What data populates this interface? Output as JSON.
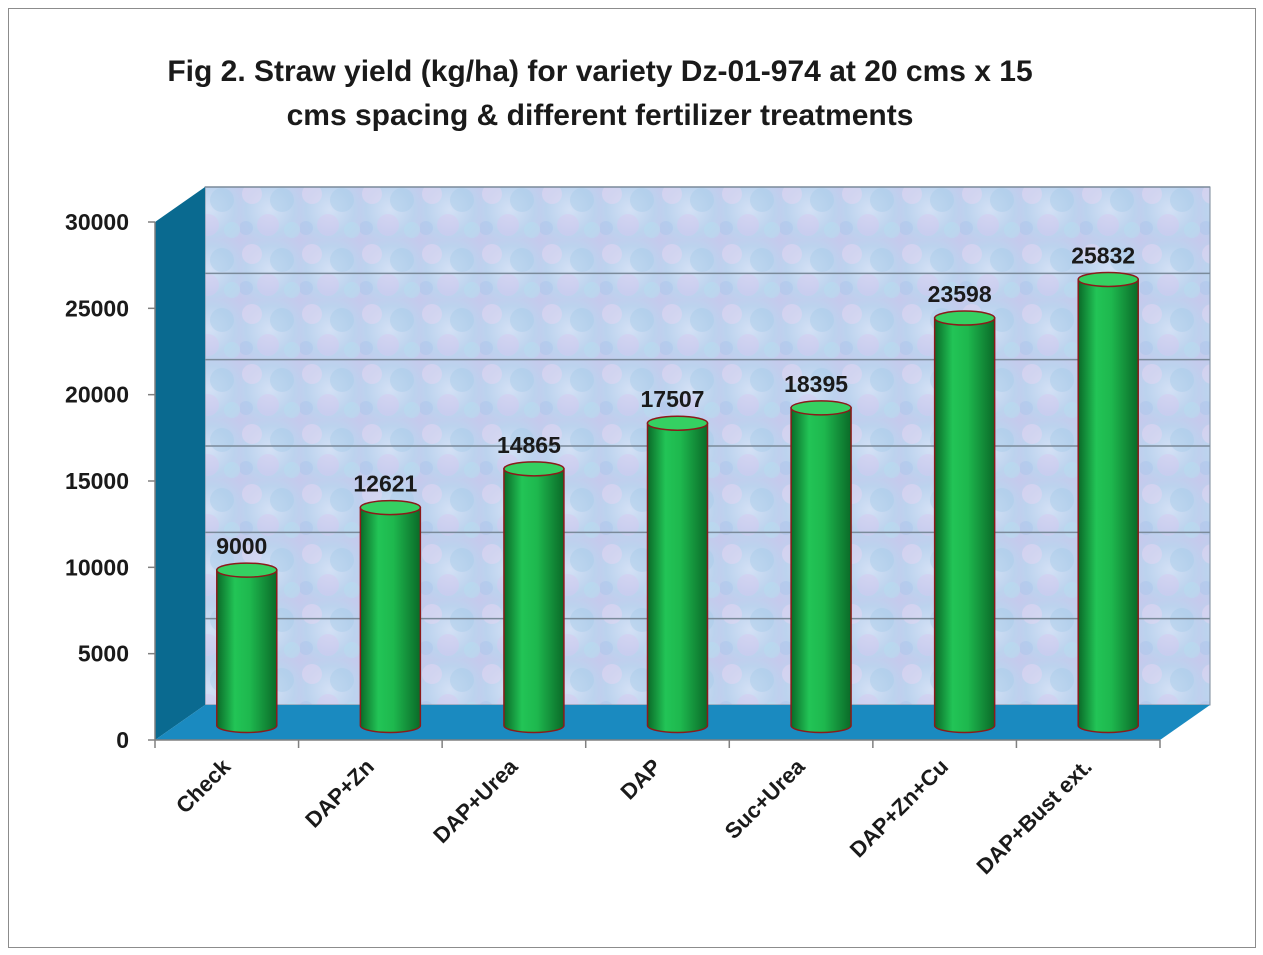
{
  "chart_data": {
    "type": "bar",
    "bar_shape": "3d-cylinder",
    "title_lines": [
      "Fig 2. Straw yield (kg/ha) for variety Dz-01-974 at  20 cms x 15",
      "cms spacing & different fertilizer treatments"
    ],
    "categories": [
      "Check",
      "DAP+Zn",
      "DAP+Urea",
      "DAP",
      "Suc+Urea",
      "DAP+Zn+Cu",
      "DAP+Bust ext."
    ],
    "values": [
      9000,
      12621,
      14865,
      17507,
      18395,
      23598,
      25832
    ],
    "data_labels": [
      "9000",
      "12621",
      "14865",
      "17507",
      "18395",
      "23598",
      "25832"
    ],
    "y_ticks": [
      "0",
      "5000",
      "10000",
      "15000",
      "20000",
      "25000",
      "30000"
    ],
    "ylim": [
      0,
      30000
    ],
    "grid": true,
    "legend": "none",
    "colors": {
      "bar": "#1ec050",
      "bar_dark": "#0a6a28",
      "bar_top": "#35d062",
      "bar_outline": "#8b1a1a",
      "floor": "#1a8ac0",
      "side_wall": "#0a6a90",
      "back_wall": "#c4d9f0",
      "gridline": "#7a8a9a"
    }
  }
}
